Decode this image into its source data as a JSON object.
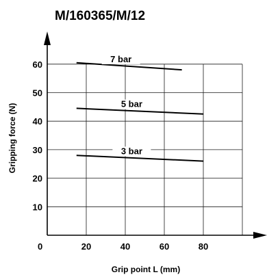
{
  "chart_data": {
    "type": "line",
    "title": "M/160365/M/12",
    "xlabel": "Grip point L (mm)",
    "ylabel": "Gripping force (N)",
    "xlim": [
      0,
      100
    ],
    "ylim": [
      0,
      70
    ],
    "x_ticks": [
      20,
      40,
      60,
      80
    ],
    "y_ticks": [
      10,
      20,
      30,
      40,
      50,
      60
    ],
    "origin_label": "0",
    "grid": true,
    "series": [
      {
        "name": "7 bar",
        "x": [
          15,
          69
        ],
        "y": [
          60.5,
          58.0
        ]
      },
      {
        "name": "5 bar",
        "x": [
          15,
          80
        ],
        "y": [
          44.5,
          42.5
        ]
      },
      {
        "name": "3 bar",
        "x": [
          15,
          80
        ],
        "y": [
          28.0,
          26.0
        ]
      }
    ]
  }
}
